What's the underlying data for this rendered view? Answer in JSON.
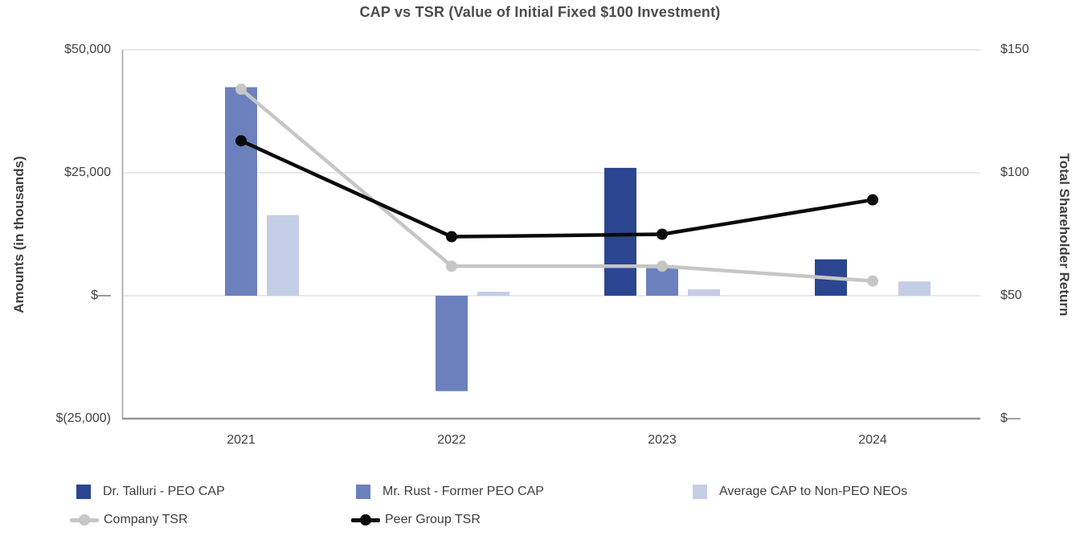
{
  "title": "CAP vs TSR (Value of Initial Fixed $100 Investment)",
  "axes": {
    "left": {
      "title": "Amounts (in thousands)",
      "ticks": [
        {
          "label": "$50,000",
          "value": 50000
        },
        {
          "label": "$25,000",
          "value": 25000
        },
        {
          "label": "$—",
          "value": 0
        },
        {
          "label": "$(25,000)",
          "value": -25000
        }
      ]
    },
    "right": {
      "title": "Total Shareholder Return",
      "ticks": [
        {
          "label": "$150",
          "value": 150
        },
        {
          "label": "$100",
          "value": 100
        },
        {
          "label": "$50",
          "value": 50
        },
        {
          "label": "$—",
          "value": 0
        }
      ]
    },
    "x": {
      "categories": [
        "2021",
        "2022",
        "2023",
        "2024"
      ]
    }
  },
  "chart_data": {
    "type": "combo",
    "categories": [
      "2021",
      "2022",
      "2023",
      "2024"
    ],
    "series": [
      {
        "name": "Dr. Talluri - PEO CAP",
        "kind": "bar",
        "axis": "left",
        "color": "#2b4590",
        "values": [
          null,
          null,
          26000,
          7400
        ]
      },
      {
        "name": "Mr. Rust - Former PEO CAP",
        "kind": "bar",
        "axis": "left",
        "color": "#6b80bd",
        "values": [
          42400,
          -19400,
          5600,
          null
        ]
      },
      {
        "name": "Average CAP to Non-PEO NEOs",
        "kind": "bar",
        "axis": "left",
        "color": "#c4cde6",
        "values": [
          16400,
          800,
          1300,
          2900
        ]
      },
      {
        "name": "Company TSR",
        "kind": "line",
        "axis": "right",
        "color": "#c6c6c6",
        "values": [
          134,
          62,
          62,
          56
        ]
      },
      {
        "name": "Peer Group TSR",
        "kind": "line",
        "axis": "right",
        "color": "#0a0a0a",
        "values": [
          113,
          74,
          75,
          89
        ]
      }
    ],
    "title": "CAP vs TSR (Value of Initial Fixed $100 Investment)",
    "xlabel": "",
    "ylabel_left": "Amounts (in thousands)",
    "ylabel_right": "Total Shareholder Return",
    "ylim_left": [
      -25000,
      50000
    ],
    "ylim_right": [
      0,
      150
    ],
    "grid": true,
    "legend_position": "bottom"
  },
  "legend": {
    "rows": [
      [
        {
          "marker": "square",
          "color": "#2b4590",
          "label": "Dr. Talluri - PEO CAP"
        },
        {
          "marker": "square",
          "color": "#6b80bd",
          "label": "Mr. Rust - Former PEO CAP"
        },
        {
          "marker": "square",
          "color": "#c4cde6",
          "label": "Average CAP to Non-PEO NEOs"
        }
      ],
      [
        {
          "marker": "line-dot",
          "color": "#c6c6c6",
          "label": "Company TSR"
        },
        {
          "marker": "line-dot",
          "color": "#0a0a0a",
          "label": "Peer Group TSR"
        }
      ]
    ]
  },
  "colors": {
    "peo_cap": "#2b4590",
    "former_peo_cap": "#6b80bd",
    "avg_neo_cap": "#c4cde6",
    "company_tsr": "#c6c6c6",
    "peer_tsr": "#0a0a0a",
    "grid_line": "#e9e9e9",
    "axis_line": "#949494",
    "left_axis_line": "#ababab",
    "text": "#404040"
  }
}
